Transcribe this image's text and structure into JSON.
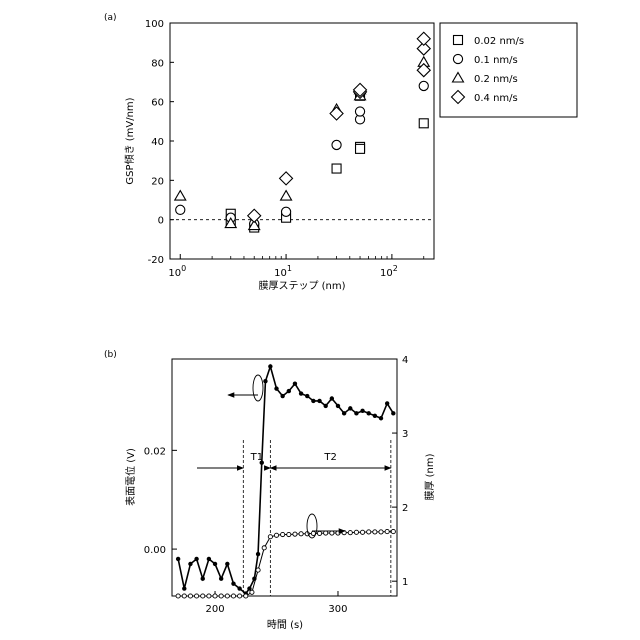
{
  "chart_data": [
    {
      "panel": "(a)",
      "type": "scatter",
      "xlabel": "膜厚ステップ (nm)",
      "ylabel": "GSP傾き (mV/nm)",
      "xscale": "log",
      "xlim": [
        0.8,
        250
      ],
      "ylim": [
        -20,
        100
      ],
      "yticks": [
        -20,
        0,
        20,
        40,
        60,
        80,
        100
      ],
      "xticks": [
        {
          "value": 1,
          "base": "10",
          "exp": "0"
        },
        {
          "value": 10,
          "base": "10",
          "exp": "1"
        },
        {
          "value": 100,
          "base": "10",
          "exp": "2"
        }
      ],
      "reference_line": {
        "y": 0,
        "style": "dashed"
      },
      "legend_position": "top-right outside",
      "series": [
        {
          "name": "0.02 nm/s",
          "marker": "square",
          "points": [
            [
              3,
              3
            ],
            [
              3,
              -1
            ],
            [
              5,
              -4
            ],
            [
              10,
              1
            ],
            [
              30,
              26
            ],
            [
              50,
              37
            ],
            [
              50,
              36
            ],
            [
              50,
              63
            ],
            [
              200,
              49
            ]
          ]
        },
        {
          "name": "0.1 nm/s",
          "marker": "circle",
          "points": [
            [
              1,
              5
            ],
            [
              3,
              1
            ],
            [
              5,
              -2
            ],
            [
              10,
              4
            ],
            [
              30,
              38
            ],
            [
              50,
              51
            ],
            [
              50,
              55
            ],
            [
              50,
              64
            ],
            [
              200,
              68
            ]
          ]
        },
        {
          "name": "0.2 nm/s",
          "marker": "triangle",
          "points": [
            [
              1,
              12
            ],
            [
              3,
              -2
            ],
            [
              5,
              -3
            ],
            [
              10,
              12
            ],
            [
              30,
              56
            ],
            [
              50,
              63
            ],
            [
              50,
              66
            ],
            [
              200,
              80
            ]
          ]
        },
        {
          "name": "0.4 nm/s",
          "marker": "diamond",
          "points": [
            [
              5,
              2
            ],
            [
              10,
              21
            ],
            [
              30,
              54
            ],
            [
              50,
              65
            ],
            [
              50,
              66
            ],
            [
              200,
              76
            ],
            [
              200,
              87
            ],
            [
              200,
              92
            ]
          ]
        }
      ]
    },
    {
      "panel": "(b)",
      "type": "line",
      "xlabel": "時間 (s)",
      "ylabel_left": "表面電位 (V)",
      "ylabel_right": "膜厚 (nm)",
      "xlim": [
        165,
        348
      ],
      "xticks": [
        200,
        300
      ],
      "ylim_left": [
        -0.0095,
        0.0385
      ],
      "yticks_left": [
        "0.00",
        "0.02"
      ],
      "ylim_right": [
        0.8,
        4.0
      ],
      "yticks_right": [
        1,
        2,
        3,
        4
      ],
      "annotations": [
        "T1",
        "T2"
      ],
      "markers": {
        "t_start": 223,
        "t_mid": 245,
        "t_end": 343
      },
      "series": [
        {
          "quantity": "surface potential",
          "axis": "left",
          "marker": "filled circle",
          "x": [
            170,
            175,
            180,
            185,
            190,
            195,
            200,
            205,
            210,
            215,
            220,
            225,
            228,
            232,
            235,
            238,
            241,
            245,
            250,
            255,
            260,
            265,
            270,
            275,
            280,
            285,
            290,
            295,
            300,
            305,
            310,
            315,
            320,
            325,
            330,
            335,
            340,
            345
          ],
          "y": [
            -0.002,
            -0.008,
            -0.003,
            -0.002,
            -0.006,
            -0.002,
            -0.003,
            -0.006,
            -0.003,
            -0.007,
            -0.008,
            -0.009,
            -0.008,
            -0.006,
            -0.001,
            0.0175,
            0.034,
            0.037,
            0.0325,
            0.031,
            0.032,
            0.0335,
            0.0315,
            0.031,
            0.03,
            0.03,
            0.029,
            0.0305,
            0.029,
            0.0275,
            0.0285,
            0.0275,
            0.028,
            0.0275,
            0.027,
            0.0265,
            0.0295,
            0.0275
          ]
        },
        {
          "quantity": "film thickness",
          "axis": "right",
          "marker": "open circle",
          "x": [
            170,
            175,
            180,
            185,
            190,
            195,
            200,
            205,
            210,
            215,
            220,
            225,
            230,
            235,
            240,
            245,
            250,
            255,
            260,
            265,
            270,
            275,
            280,
            285,
            290,
            295,
            300,
            305,
            310,
            315,
            320,
            325,
            330,
            335,
            340,
            345
          ],
          "y": [
            0.8,
            0.8,
            0.8,
            0.8,
            0.8,
            0.8,
            0.8,
            0.8,
            0.8,
            0.8,
            0.8,
            0.8,
            0.85,
            1.15,
            1.45,
            1.6,
            1.62,
            1.63,
            1.63,
            1.635,
            1.64,
            1.64,
            1.645,
            1.645,
            1.65,
            1.65,
            1.65,
            1.655,
            1.655,
            1.66,
            1.66,
            1.665,
            1.665,
            1.665,
            1.67,
            1.67
          ]
        }
      ]
    }
  ]
}
